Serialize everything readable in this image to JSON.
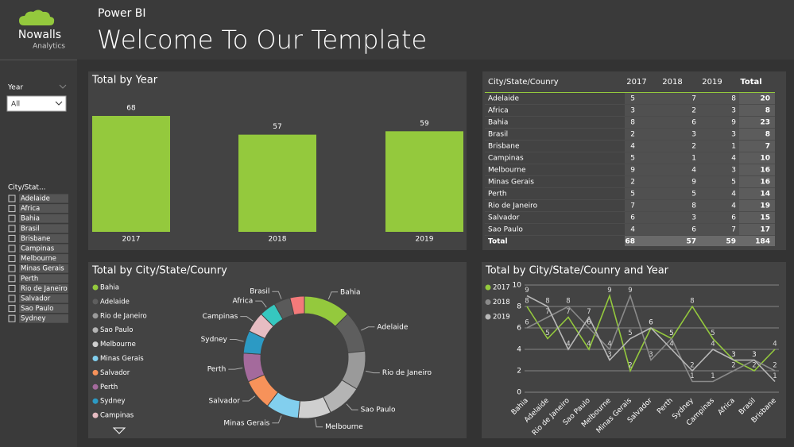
{
  "header": {
    "logo_name": "Nowalls",
    "logo_sub": "Analytics",
    "app": "Power BI",
    "title": "Welcome To Our Template"
  },
  "slicers": {
    "year": {
      "label": "Year",
      "value": "All"
    },
    "city": {
      "label": "City/Stat...",
      "items": [
        "Adelaide",
        "Africa",
        "Bahia",
        "Brasil",
        "Brisbane",
        "Campinas",
        "Melbourne",
        "Minas Gerais",
        "Perth",
        "Rio de Janeiro",
        "Salvador",
        "Sao Paulo",
        "Sydney"
      ]
    }
  },
  "table": {
    "columns": [
      "City/State/Counry",
      "2017",
      "2018",
      "2019",
      "Total"
    ],
    "rows": [
      [
        "Adelaide",
        5,
        7,
        8,
        20
      ],
      [
        "Africa",
        3,
        2,
        3,
        8
      ],
      [
        "Bahia",
        8,
        6,
        9,
        23
      ],
      [
        "Brasil",
        2,
        3,
        3,
        8
      ],
      [
        "Brisbane",
        4,
        2,
        1,
        7
      ],
      [
        "Campinas",
        5,
        1,
        4,
        10
      ],
      [
        "Melbourne",
        9,
        4,
        3,
        16
      ],
      [
        "Minas Gerais",
        2,
        9,
        5,
        16
      ],
      [
        "Perth",
        5,
        5,
        4,
        14
      ],
      [
        "Rio de Janeiro",
        7,
        8,
        4,
        19
      ],
      [
        "Salvador",
        6,
        3,
        6,
        15
      ],
      [
        "Sao Paulo",
        4,
        6,
        7,
        17
      ]
    ],
    "total": [
      "Total",
      68,
      57,
      59,
      184
    ]
  },
  "chart_data": [
    {
      "type": "bar",
      "title": "Total by Year",
      "categories": [
        "2017",
        "2018",
        "2019"
      ],
      "values": [
        68,
        57,
        59
      ],
      "color": "#94c93d",
      "data_labels": true
    },
    {
      "type": "pie",
      "donut": true,
      "title": "Total by City/State/Counry",
      "categories": [
        "Bahia",
        "Adelaide",
        "Rio de Janeiro",
        "Sao Paulo",
        "Melbourne",
        "Minas Gerais",
        "Salvador",
        "Perth",
        "Sydney",
        "Campinas",
        "Africa",
        "Brasil",
        null
      ],
      "values": [
        23,
        20,
        19,
        17,
        16,
        16,
        15,
        14,
        11,
        10,
        8,
        8,
        7
      ],
      "colors": [
        "#94c93d",
        "#5e5e5e",
        "#9a9a9a",
        "#b4b4b4",
        "#cfcfcf",
        "#82cfee",
        "#f7925a",
        "#a46a9c",
        "#2c9ac4",
        "#e6bcc2",
        "#36c7bf",
        "#5a5a5a",
        "#f47a7a"
      ]
    },
    {
      "type": "line",
      "title": "Total by City/State/Counry and Year",
      "categories": [
        "Bahia",
        "Adelaide",
        "Rio de Janeiro",
        "Sao Paulo",
        "Melbourne",
        "Minas Gerais",
        "Salvador",
        "Perth",
        "Sydney",
        "Campinas",
        "Africa",
        "Brasil",
        "Brisbane"
      ],
      "series": [
        {
          "name": "2017",
          "color": "#94c93d",
          "values": [
            8,
            5,
            7,
            4,
            9,
            2,
            6,
            5,
            8,
            5,
            3,
            2,
            4
          ]
        },
        {
          "name": "2018",
          "color": "#8a8a8a",
          "values": [
            6,
            7,
            8,
            6,
            4,
            9,
            3,
            5,
            1,
            1,
            2,
            3,
            2
          ]
        },
        {
          "name": "2019",
          "color": "#b8b8b8",
          "values": [
            9,
            8,
            4,
            7,
            3,
            5,
            6,
            4,
            2,
            4,
            3,
            3,
            1
          ]
        }
      ],
      "ylim": [
        0,
        10
      ],
      "yticks": [
        0,
        2,
        4,
        6,
        8,
        10
      ],
      "grid": true,
      "data_labels": true
    }
  ]
}
